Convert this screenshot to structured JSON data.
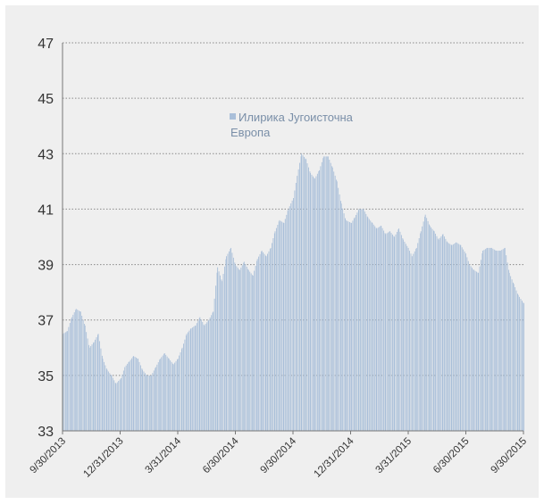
{
  "chart_data": {
    "type": "bar",
    "title": "",
    "xlabel": "",
    "ylabel": "",
    "ylim": [
      33,
      47
    ],
    "y_ticks": [
      "33",
      "35",
      "37",
      "39",
      "41",
      "43",
      "45",
      "47"
    ],
    "x_tick_labels": [
      "9/30/2013",
      "12/31/2013",
      "3/31/2014",
      "6/30/2014",
      "9/30/2014",
      "12/31/2014",
      "3/31/2015",
      "6/30/2015",
      "9/30/2015"
    ],
    "grid": "horizontal dotted",
    "legend_position": "top-center",
    "series": [
      {
        "name_lines": [
          "Илирика Југоисточна",
          "Европа"
        ],
        "color": "#a9bfd9",
        "dates": [
          "2013-09-30",
          "2013-10-07",
          "2013-10-14",
          "2013-10-21",
          "2013-10-28",
          "2013-11-04",
          "2013-11-11",
          "2013-11-18",
          "2013-11-25",
          "2013-12-02",
          "2013-12-09",
          "2013-12-16",
          "2013-12-23",
          "2013-12-31",
          "2014-01-06",
          "2014-01-13",
          "2014-01-20",
          "2014-01-27",
          "2014-02-03",
          "2014-02-10",
          "2014-02-17",
          "2014-02-24",
          "2014-03-03",
          "2014-03-10",
          "2014-03-17",
          "2014-03-24",
          "2014-03-31",
          "2014-04-07",
          "2014-04-14",
          "2014-04-21",
          "2014-04-28",
          "2014-05-05",
          "2014-05-12",
          "2014-05-19",
          "2014-05-26",
          "2014-06-02",
          "2014-06-09",
          "2014-06-16",
          "2014-06-23",
          "2014-06-30",
          "2014-07-07",
          "2014-07-14",
          "2014-07-21",
          "2014-07-28",
          "2014-08-04",
          "2014-08-11",
          "2014-08-18",
          "2014-08-25",
          "2014-09-01",
          "2014-09-08",
          "2014-09-15",
          "2014-09-22",
          "2014-09-30",
          "2014-10-06",
          "2014-10-13",
          "2014-10-20",
          "2014-10-27",
          "2014-11-03",
          "2014-11-10",
          "2014-11-17",
          "2014-11-24",
          "2014-12-01",
          "2014-12-08",
          "2014-12-15",
          "2014-12-22",
          "2014-12-31",
          "2015-01-05",
          "2015-01-12",
          "2015-01-19",
          "2015-01-26",
          "2015-02-02",
          "2015-02-09",
          "2015-02-16",
          "2015-02-23",
          "2015-03-02",
          "2015-03-09",
          "2015-03-16",
          "2015-03-23",
          "2015-03-31",
          "2015-04-06",
          "2015-04-13",
          "2015-04-20",
          "2015-04-27",
          "2015-05-04",
          "2015-05-11",
          "2015-05-18",
          "2015-05-25",
          "2015-06-01",
          "2015-06-08",
          "2015-06-15",
          "2015-06-22",
          "2015-06-30",
          "2015-07-06",
          "2015-07-13",
          "2015-07-20",
          "2015-07-27",
          "2015-08-03",
          "2015-08-10",
          "2015-08-17",
          "2015-08-24",
          "2015-08-31",
          "2015-09-07",
          "2015-09-14",
          "2015-09-21",
          "2015-09-30"
        ],
        "values": [
          36.5,
          36.6,
          37.1,
          37.4,
          37.3,
          36.8,
          36.0,
          36.2,
          36.5,
          35.6,
          35.2,
          35.0,
          34.7,
          34.9,
          35.3,
          35.5,
          35.7,
          35.6,
          35.2,
          35.0,
          35.0,
          35.3,
          35.6,
          35.8,
          35.6,
          35.4,
          35.6,
          36.0,
          36.5,
          36.7,
          36.8,
          37.1,
          36.8,
          37.0,
          37.3,
          38.9,
          38.4,
          39.3,
          39.6,
          39.0,
          38.8,
          39.1,
          38.8,
          38.6,
          39.2,
          39.5,
          39.3,
          39.6,
          40.2,
          40.6,
          40.5,
          41.0,
          41.4,
          42.2,
          43.0,
          42.8,
          42.3,
          42.1,
          42.4,
          42.9,
          42.9,
          42.5,
          42.0,
          41.2,
          40.6,
          40.5,
          40.7,
          41.0,
          41.0,
          40.7,
          40.5,
          40.3,
          40.4,
          40.1,
          40.2,
          40.0,
          40.3,
          39.9,
          39.6,
          39.3,
          39.6,
          40.2,
          40.8,
          40.4,
          40.2,
          39.9,
          40.1,
          39.8,
          39.7,
          39.8,
          39.7,
          39.4,
          39.0,
          38.8,
          38.7,
          39.5,
          39.6,
          39.6,
          39.5,
          39.5,
          39.6,
          38.7,
          38.3,
          37.9,
          37.6
        ]
      }
    ]
  }
}
